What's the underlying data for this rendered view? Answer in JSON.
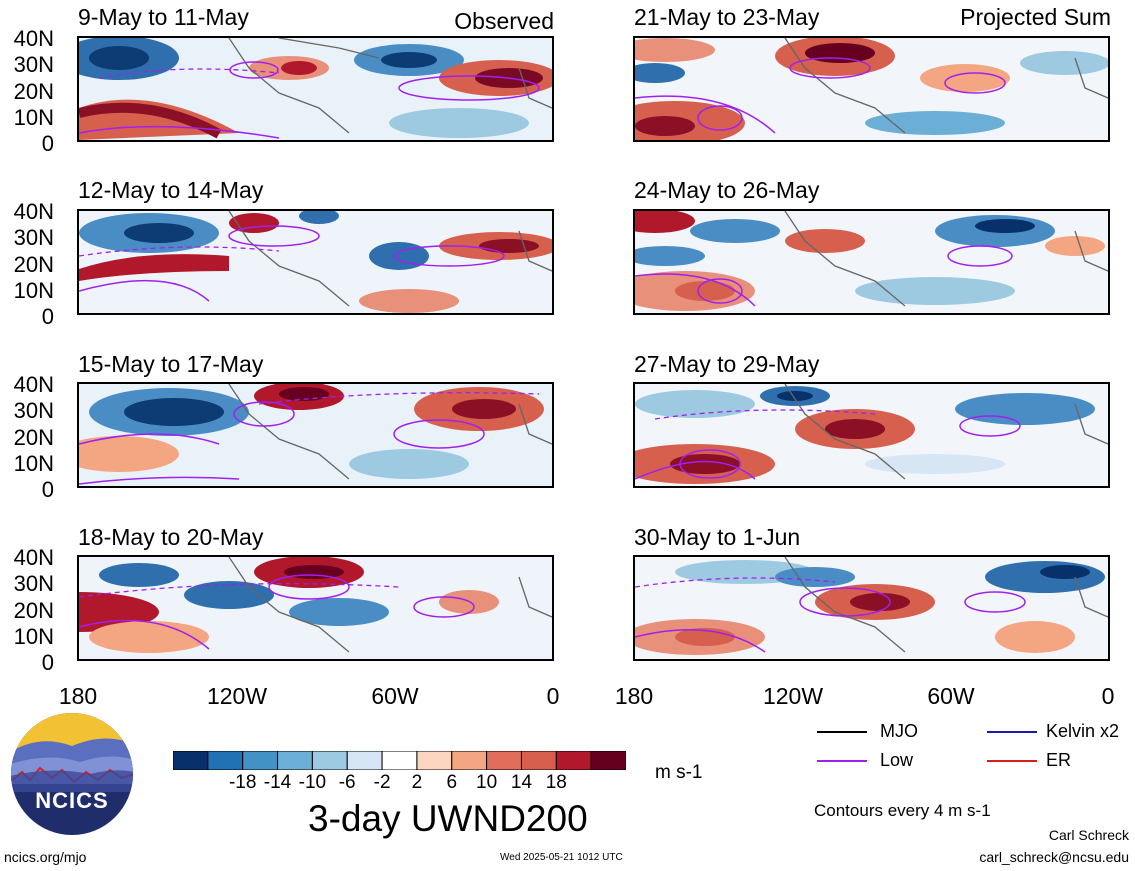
{
  "header": {
    "left_tag": "Observed",
    "right_tag": "Projected Sum"
  },
  "panels": {
    "left": [
      {
        "period": "9-May to 11-May"
      },
      {
        "period": "12-May to 14-May"
      },
      {
        "period": "15-May to 17-May"
      },
      {
        "period": "18-May to 20-May"
      }
    ],
    "right": [
      {
        "period": "21-May to 23-May"
      },
      {
        "period": "24-May to 26-May"
      },
      {
        "period": "27-May to 29-May"
      },
      {
        "period": "30-May to 1-Jun"
      }
    ]
  },
  "lat_ticks": [
    "40N",
    "30N",
    "20N",
    "10N",
    "0"
  ],
  "lon_ticks": [
    "180",
    "120W",
    "60W",
    "0"
  ],
  "colorbar": {
    "colors": [
      "#08306b",
      "#2171b5",
      "#4292c6",
      "#6baed6",
      "#9ecae1",
      "#d6e6f4",
      "#ffffff",
      "#fcd5c1",
      "#f4a582",
      "#e06c5a",
      "#d6604d",
      "#b2182b",
      "#67001f"
    ],
    "labels": [
      "-18",
      "-14",
      "-10",
      "-6",
      "-2",
      "2",
      "6",
      "10",
      "14",
      "18"
    ],
    "units": "m s-1"
  },
  "main_title": "3-day UWND200",
  "legend": {
    "items": [
      {
        "label": "MJO",
        "color": "#000000"
      },
      {
        "label": "Kelvin x2",
        "color": "#1a1aaa"
      },
      {
        "label": "Low",
        "color": "#a020f0"
      },
      {
        "label": "ER",
        "color": "#d62020"
      }
    ],
    "contours_note": "Contours every 4 m s-1"
  },
  "footer": {
    "site": "ncics.org/mjo",
    "timestamp": "Wed 2025-05-21 1012 UTC",
    "author": "Carl Schreck",
    "email": "carl_schreck@ncsu.edu",
    "logo_text": "NCICS"
  }
}
